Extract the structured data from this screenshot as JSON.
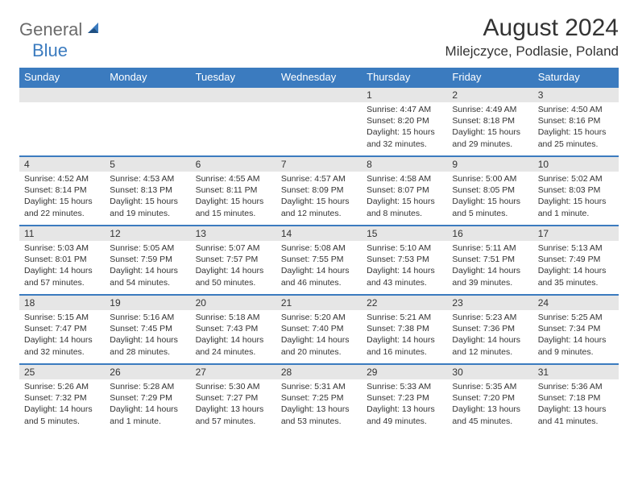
{
  "logo": {
    "general": "General",
    "blue": "Blue"
  },
  "title": "August 2024",
  "location": "Milejczyce, Podlasie, Poland",
  "colors": {
    "header_bg": "#3b7bbf",
    "header_text": "#ffffff",
    "band_bg": "#e6e6e6",
    "band_border": "#3b7bbf",
    "body_bg": "#ffffff",
    "text": "#333333",
    "logo_gray": "#6b6b6b",
    "logo_blue": "#3b7bbf"
  },
  "weekdays": [
    "Sunday",
    "Monday",
    "Tuesday",
    "Wednesday",
    "Thursday",
    "Friday",
    "Saturday"
  ],
  "weeks": [
    [
      null,
      null,
      null,
      null,
      {
        "n": "1",
        "sr": "4:47 AM",
        "ss": "8:20 PM",
        "dl": "15 hours and 32 minutes."
      },
      {
        "n": "2",
        "sr": "4:49 AM",
        "ss": "8:18 PM",
        "dl": "15 hours and 29 minutes."
      },
      {
        "n": "3",
        "sr": "4:50 AM",
        "ss": "8:16 PM",
        "dl": "15 hours and 25 minutes."
      }
    ],
    [
      {
        "n": "4",
        "sr": "4:52 AM",
        "ss": "8:14 PM",
        "dl": "15 hours and 22 minutes."
      },
      {
        "n": "5",
        "sr": "4:53 AM",
        "ss": "8:13 PM",
        "dl": "15 hours and 19 minutes."
      },
      {
        "n": "6",
        "sr": "4:55 AM",
        "ss": "8:11 PM",
        "dl": "15 hours and 15 minutes."
      },
      {
        "n": "7",
        "sr": "4:57 AM",
        "ss": "8:09 PM",
        "dl": "15 hours and 12 minutes."
      },
      {
        "n": "8",
        "sr": "4:58 AM",
        "ss": "8:07 PM",
        "dl": "15 hours and 8 minutes."
      },
      {
        "n": "9",
        "sr": "5:00 AM",
        "ss": "8:05 PM",
        "dl": "15 hours and 5 minutes."
      },
      {
        "n": "10",
        "sr": "5:02 AM",
        "ss": "8:03 PM",
        "dl": "15 hours and 1 minute."
      }
    ],
    [
      {
        "n": "11",
        "sr": "5:03 AM",
        "ss": "8:01 PM",
        "dl": "14 hours and 57 minutes."
      },
      {
        "n": "12",
        "sr": "5:05 AM",
        "ss": "7:59 PM",
        "dl": "14 hours and 54 minutes."
      },
      {
        "n": "13",
        "sr": "5:07 AM",
        "ss": "7:57 PM",
        "dl": "14 hours and 50 minutes."
      },
      {
        "n": "14",
        "sr": "5:08 AM",
        "ss": "7:55 PM",
        "dl": "14 hours and 46 minutes."
      },
      {
        "n": "15",
        "sr": "5:10 AM",
        "ss": "7:53 PM",
        "dl": "14 hours and 43 minutes."
      },
      {
        "n": "16",
        "sr": "5:11 AM",
        "ss": "7:51 PM",
        "dl": "14 hours and 39 minutes."
      },
      {
        "n": "17",
        "sr": "5:13 AM",
        "ss": "7:49 PM",
        "dl": "14 hours and 35 minutes."
      }
    ],
    [
      {
        "n": "18",
        "sr": "5:15 AM",
        "ss": "7:47 PM",
        "dl": "14 hours and 32 minutes."
      },
      {
        "n": "19",
        "sr": "5:16 AM",
        "ss": "7:45 PM",
        "dl": "14 hours and 28 minutes."
      },
      {
        "n": "20",
        "sr": "5:18 AM",
        "ss": "7:43 PM",
        "dl": "14 hours and 24 minutes."
      },
      {
        "n": "21",
        "sr": "5:20 AM",
        "ss": "7:40 PM",
        "dl": "14 hours and 20 minutes."
      },
      {
        "n": "22",
        "sr": "5:21 AM",
        "ss": "7:38 PM",
        "dl": "14 hours and 16 minutes."
      },
      {
        "n": "23",
        "sr": "5:23 AM",
        "ss": "7:36 PM",
        "dl": "14 hours and 12 minutes."
      },
      {
        "n": "24",
        "sr": "5:25 AM",
        "ss": "7:34 PM",
        "dl": "14 hours and 9 minutes."
      }
    ],
    [
      {
        "n": "25",
        "sr": "5:26 AM",
        "ss": "7:32 PM",
        "dl": "14 hours and 5 minutes."
      },
      {
        "n": "26",
        "sr": "5:28 AM",
        "ss": "7:29 PM",
        "dl": "14 hours and 1 minute."
      },
      {
        "n": "27",
        "sr": "5:30 AM",
        "ss": "7:27 PM",
        "dl": "13 hours and 57 minutes."
      },
      {
        "n": "28",
        "sr": "5:31 AM",
        "ss": "7:25 PM",
        "dl": "13 hours and 53 minutes."
      },
      {
        "n": "29",
        "sr": "5:33 AM",
        "ss": "7:23 PM",
        "dl": "13 hours and 49 minutes."
      },
      {
        "n": "30",
        "sr": "5:35 AM",
        "ss": "7:20 PM",
        "dl": "13 hours and 45 minutes."
      },
      {
        "n": "31",
        "sr": "5:36 AM",
        "ss": "7:18 PM",
        "dl": "13 hours and 41 minutes."
      }
    ]
  ],
  "labels": {
    "sunrise": "Sunrise: ",
    "sunset": "Sunset: ",
    "daylight": "Daylight: "
  }
}
